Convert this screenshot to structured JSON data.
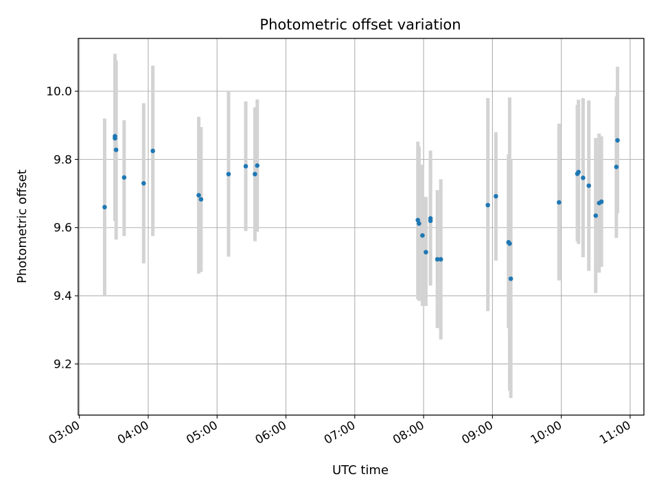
{
  "chart_data": {
    "type": "scatter",
    "title": "Photometric offset variation",
    "xlabel": "UTC time",
    "ylabel": "Photometric offset",
    "xlim": [
      "02:59",
      "11:12"
    ],
    "ylim": [
      9.05,
      10.155
    ],
    "x_ticks": [
      "03:00",
      "04:00",
      "05:00",
      "06:00",
      "07:00",
      "08:00",
      "09:00",
      "10:00",
      "11:00"
    ],
    "y_ticks": [
      9.2,
      9.4,
      9.6,
      9.8,
      10.0
    ],
    "grid": true,
    "x_tick_rotation_deg": 30,
    "errorbar_color": "#d3d3d3",
    "point_color": "#1f77b4",
    "points": [
      {
        "x": "03:22",
        "y": 9.66,
        "err_low": 9.4,
        "err_high": 9.92
      },
      {
        "x": "03:31",
        "y": 9.862,
        "err_low": 9.62,
        "err_high": 10.1
      },
      {
        "x": "03:31",
        "y": 9.868,
        "err_low": 9.62,
        "err_high": 10.11
      },
      {
        "x": "03:32",
        "y": 9.828,
        "err_low": 9.565,
        "err_high": 10.09
      },
      {
        "x": "03:39",
        "y": 9.747,
        "err_low": 9.575,
        "err_high": 9.915
      },
      {
        "x": "03:56",
        "y": 9.73,
        "err_low": 9.495,
        "err_high": 9.965
      },
      {
        "x": "04:04",
        "y": 9.825,
        "err_low": 9.575,
        "err_high": 10.075
      },
      {
        "x": "04:44",
        "y": 9.695,
        "err_low": 9.465,
        "err_high": 9.925
      },
      {
        "x": "04:46",
        "y": 9.683,
        "err_low": 9.47,
        "err_high": 9.895
      },
      {
        "x": "05:10",
        "y": 9.757,
        "err_low": 9.515,
        "err_high": 10.0
      },
      {
        "x": "05:25",
        "y": 9.78,
        "err_low": 9.59,
        "err_high": 9.97
      },
      {
        "x": "05:33",
        "y": 9.757,
        "err_low": 9.56,
        "err_high": 9.953
      },
      {
        "x": "05:35",
        "y": 9.782,
        "err_low": 9.588,
        "err_high": 9.976
      },
      {
        "x": "07:55",
        "y": 9.622,
        "err_low": 9.39,
        "err_high": 9.852
      },
      {
        "x": "07:56",
        "y": 9.612,
        "err_low": 9.385,
        "err_high": 9.838
      },
      {
        "x": "07:59",
        "y": 9.577,
        "err_low": 9.37,
        "err_high": 9.785
      },
      {
        "x": "08:02",
        "y": 9.528,
        "err_low": 9.37,
        "err_high": 9.69
      },
      {
        "x": "08:06",
        "y": 9.627,
        "err_low": 9.43,
        "err_high": 9.826
      },
      {
        "x": "08:06",
        "y": 9.62,
        "err_low": 9.44,
        "err_high": 9.8
      },
      {
        "x": "08:12",
        "y": 9.507,
        "err_low": 9.305,
        "err_high": 9.71
      },
      {
        "x": "08:15",
        "y": 9.507,
        "err_low": 9.272,
        "err_high": 9.742
      },
      {
        "x": "08:56",
        "y": 9.666,
        "err_low": 9.355,
        "err_high": 9.98
      },
      {
        "x": "09:03",
        "y": 9.692,
        "err_low": 9.503,
        "err_high": 9.88
      },
      {
        "x": "09:14",
        "y": 9.557,
        "err_low": 9.305,
        "err_high": 9.815
      },
      {
        "x": "09:15",
        "y": 9.553,
        "err_low": 9.122,
        "err_high": 9.982
      },
      {
        "x": "09:16",
        "y": 9.45,
        "err_low": 9.1,
        "err_high": 9.8
      },
      {
        "x": "09:58",
        "y": 9.674,
        "err_low": 9.445,
        "err_high": 9.905
      },
      {
        "x": "10:14",
        "y": 9.758,
        "err_low": 9.56,
        "err_high": 9.96
      },
      {
        "x": "10:15",
        "y": 9.763,
        "err_low": 9.552,
        "err_high": 9.975
      },
      {
        "x": "10:19",
        "y": 9.746,
        "err_low": 9.513,
        "err_high": 9.98
      },
      {
        "x": "10:24",
        "y": 9.723,
        "err_low": 9.473,
        "err_high": 9.973
      },
      {
        "x": "10:30",
        "y": 9.635,
        "err_low": 9.408,
        "err_high": 9.863
      },
      {
        "x": "10:33",
        "y": 9.672,
        "err_low": 9.468,
        "err_high": 9.876
      },
      {
        "x": "10:35",
        "y": 9.676,
        "err_low": 9.485,
        "err_high": 9.868
      },
      {
        "x": "10:48",
        "y": 9.778,
        "err_low": 9.57,
        "err_high": 9.985
      },
      {
        "x": "10:49",
        "y": 9.856,
        "err_low": 9.642,
        "err_high": 10.072
      }
    ]
  }
}
